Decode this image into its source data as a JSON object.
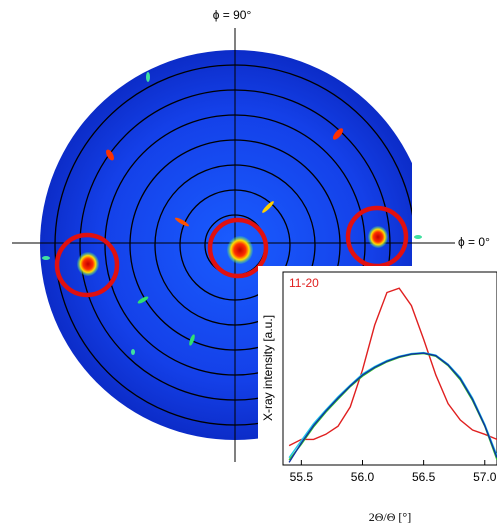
{
  "chart_data": [
    {
      "type": "pole-figure",
      "annotations": [
        "ϕ = 90°",
        "ϕ = 0°"
      ]
    },
    {
      "type": "line",
      "label": "11-20",
      "ylabel": "X-ray intensity [a.u.]",
      "xlabel": "2Θ/Θ [°]",
      "x": [
        55.4,
        55.5,
        55.6,
        55.7,
        55.8,
        55.9,
        56.0,
        56.1,
        56.2,
        56.3,
        56.4,
        56.5,
        56.6,
        56.7,
        56.8,
        56.9,
        57.0,
        57.1
      ],
      "series": [
        {
          "name": "11-20",
          "color": "#e02020",
          "values": [
            2,
            2.5,
            2.5,
            3,
            4,
            8,
            30,
            150,
            480,
            560,
            300,
            90,
            25,
            9,
            5,
            3.5,
            3,
            2.5
          ]
        },
        {
          "color": "#20c8e8",
          "values": [
            1.3,
            2.4,
            4.4,
            7.2,
            11.5,
            17.5,
            26,
            34,
            42,
            49,
            54,
            56,
            51,
            37,
            23,
            11,
            4.3,
            1.4
          ]
        },
        {
          "color": "#30c030",
          "values": [
            1.2,
            2.1,
            3.9,
            6.6,
            10.5,
            16.5,
            24,
            32,
            40,
            47,
            52,
            54,
            49,
            35,
            21,
            10,
            4,
            1.2
          ]
        },
        {
          "color": "#1030a0",
          "values": [
            1.1,
            2.2,
            4.1,
            6.9,
            11,
            17,
            25,
            33,
            41,
            48,
            53,
            55,
            50,
            36,
            22,
            10.5,
            4.1,
            1.3
          ]
        }
      ],
      "xlim": [
        55.35,
        57.1
      ],
      "xticks": [
        55.5,
        {
          "value": 56.0,
          "label": "56.0"
        },
        56.5,
        {
          "value": 57.0,
          "label": "57.0"
        }
      ],
      "ylim": [
        1,
        1000
      ],
      "log_y": true
    }
  ]
}
